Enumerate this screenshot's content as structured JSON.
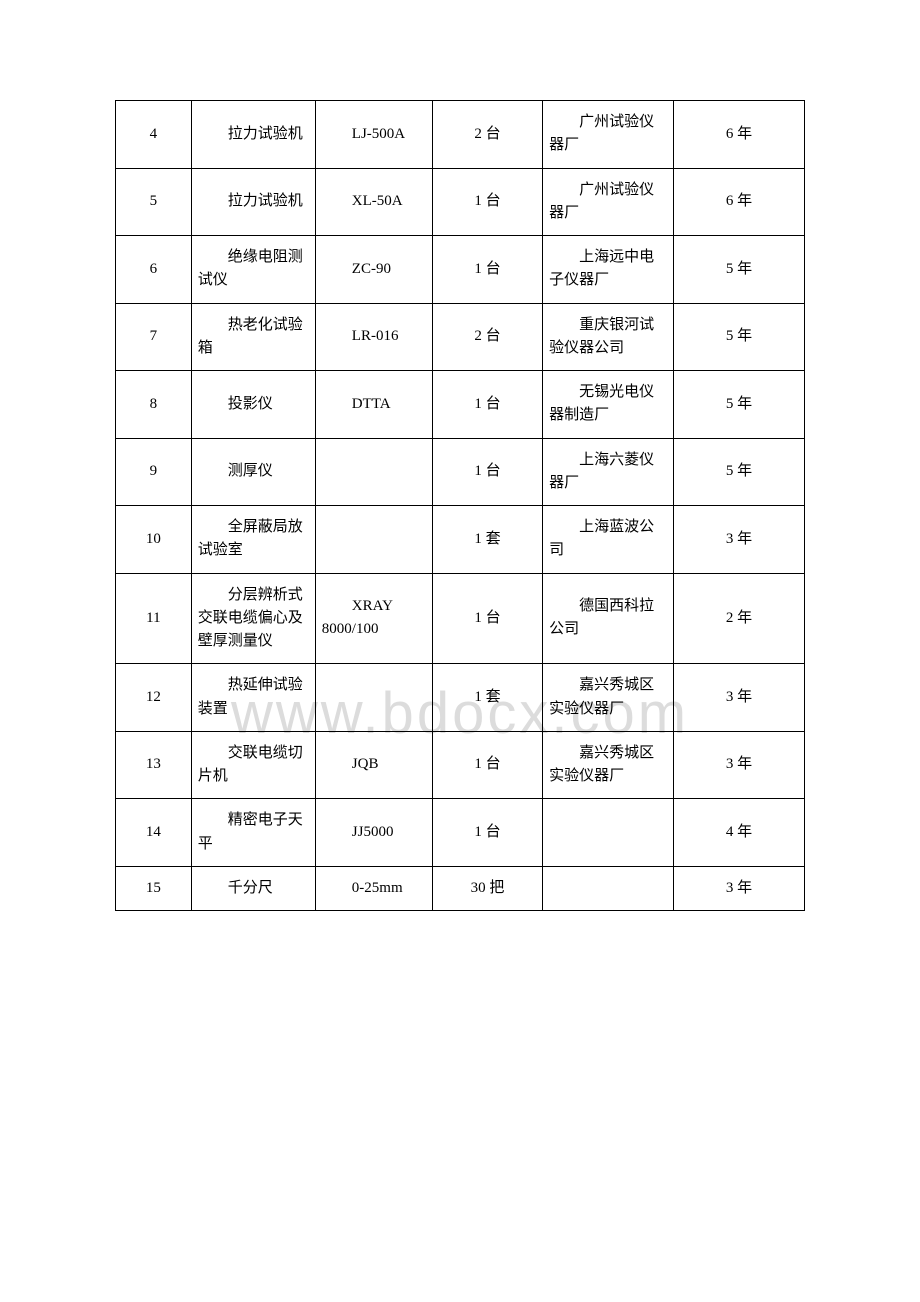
{
  "watermark": "www.bdocx.com",
  "table": {
    "rows": [
      {
        "idx": "4",
        "name": "拉力试验机",
        "model": "LJ-500A",
        "qty": "2 台",
        "mfr": "广州试验仪器厂",
        "years": "6 年"
      },
      {
        "idx": "5",
        "name": "拉力试验机",
        "model": "XL-50A",
        "qty": "1 台",
        "mfr": "广州试验仪器厂",
        "years": "6 年"
      },
      {
        "idx": "6",
        "name": "绝缘电阻测试仪",
        "model": "ZC-90",
        "qty": "1 台",
        "mfr": "上海远中电子仪器厂",
        "years": "5 年"
      },
      {
        "idx": "7",
        "name": "热老化试验箱",
        "model": "LR-016",
        "qty": "2 台",
        "mfr": "重庆银河试验仪器公司",
        "years": "5 年"
      },
      {
        "idx": "8",
        "name": "投影仪",
        "model": "DTTA",
        "qty": "1 台",
        "mfr": "无锡光电仪器制造厂",
        "years": "5 年"
      },
      {
        "idx": "9",
        "name": "测厚仪",
        "model": "",
        "qty": "1 台",
        "mfr": "上海六菱仪器厂",
        "years": "5 年"
      },
      {
        "idx": "10",
        "name": "全屏蔽局放试验室",
        "model": "",
        "qty": "1 套",
        "mfr": "上海蓝波公司",
        "years": "3 年"
      },
      {
        "idx": "11",
        "name": "分层辨析式交联电缆偏心及壁厚测量仪",
        "model": "XRAY 8000/100",
        "qty": "1 台",
        "mfr": "德国西科拉公司",
        "years": "2 年"
      },
      {
        "idx": "12",
        "name": "热延伸试验装置",
        "model": "",
        "qty": "1 套",
        "mfr": "嘉兴秀城区实验仪器厂",
        "years": "3 年"
      },
      {
        "idx": "13",
        "name": "交联电缆切片机",
        "model": "JQB",
        "qty": "1 台",
        "mfr": "嘉兴秀城区实验仪器厂",
        "years": "3 年"
      },
      {
        "idx": "14",
        "name": "精密电子天平",
        "model": "JJ5000",
        "qty": "1 台",
        "mfr": "",
        "years": "4 年"
      },
      {
        "idx": "15",
        "name": "千分尺",
        "model": "0-25mm",
        "qty": "30 把",
        "mfr": "",
        "years": "3 年"
      }
    ]
  }
}
